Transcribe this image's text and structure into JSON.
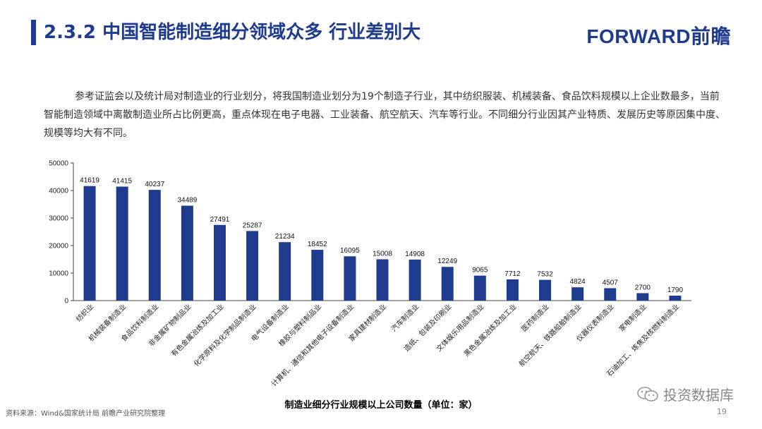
{
  "header": {
    "title": "2.3.2 中国智能制造细分领域众多 行业差别大",
    "logo": "FORWARD前瞻"
  },
  "intro": "参考证监会以及统计局对制造业的行业划分，将我国制造业划分为19个制造子行业，其中纺织服装、机械装备、食品饮料规模以上企业数最多，当前智能制造领域中离散制造业所占比例更高，重点体现在电子电器、工业装备、航空航天、汽车等行业。不同细分行业因其产业特质、发展历史等原因集中度、规模等均大有不同。",
  "chart_data": {
    "type": "bar",
    "categories": [
      "纺织业",
      "机械装备制造业",
      "食品饮料制造业",
      "非金属矿物制品业",
      "有色金属冶炼及加工业",
      "化学原料及化学制品制造业",
      "电气设备制造业",
      "橡胶与塑料制品业",
      "计算机、通信和其他电子设备制造业",
      "家具建材制造业",
      "汽车制造业",
      "造纸、包装及印刷业",
      "文体娱乐用品制造业",
      "黑色金属冶炼及加工业",
      "医药制造业",
      "航空航天、铁路船舶制造业",
      "仪器仪表制造业",
      "家电制造业",
      "石油加工、炼焦及核燃料制造业"
    ],
    "values": [
      41619,
      41415,
      40237,
      34489,
      27491,
      25287,
      21234,
      18452,
      16095,
      15008,
      14908,
      12249,
      9065,
      7712,
      7532,
      4824,
      4507,
      2700,
      1790
    ],
    "yticks": [
      "0",
      "10000",
      "20000",
      "30000",
      "40000",
      "50000"
    ],
    "ylim": [
      0,
      50000
    ],
    "xlabel": "制造业细分行业规模以上公司数量（单位：家）",
    "bar_color": "#1f3b8e",
    "grid": false
  },
  "footer": {
    "source": "资料来源：Wind&国家统计局 前瞻产业研究院整理",
    "page": "19",
    "wechat": "投资数据库"
  }
}
